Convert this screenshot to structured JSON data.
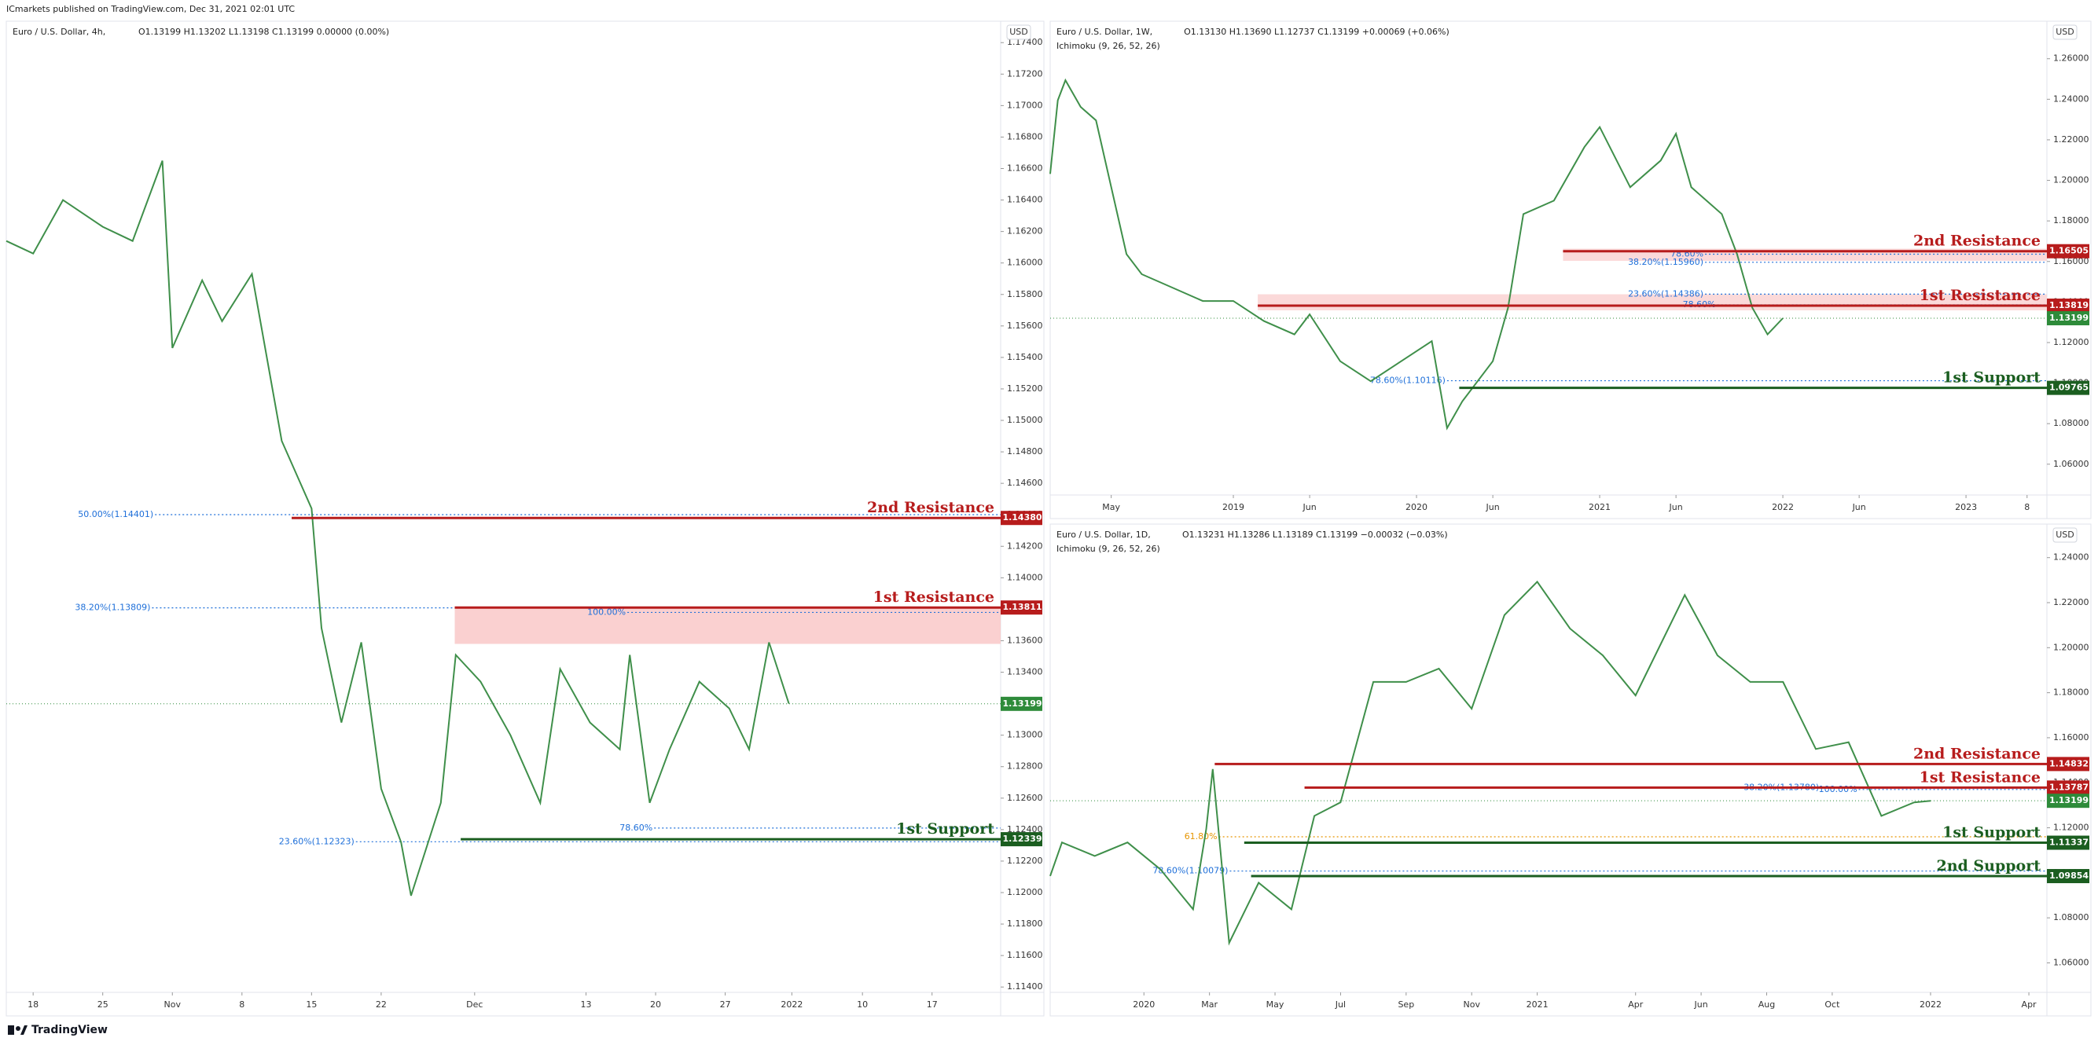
{
  "header": {
    "publisher": "ICmarkets published on TradingView.com, Dec 31, 2021 02:01 UTC",
    "brand": "TradingView"
  },
  "chart_data": [
    {
      "type": "line",
      "title": "Euro / U.S. Dollar, 4h,",
      "ohlc": "O1.13199  H1.13202  L1.13198  C1.13199  0.00000 (0.00%)",
      "ohlc_color": "#2e8b3a",
      "currency": "USD",
      "color": "#3f8f4a",
      "x": [
        -2.7,
        0,
        3,
        7,
        10,
        13,
        14,
        17,
        19,
        22,
        25,
        28,
        29,
        31,
        33,
        35,
        37,
        38,
        41,
        42.5,
        45,
        48,
        51,
        53,
        56,
        59,
        60,
        62,
        64,
        67,
        70,
        72,
        74,
        76
      ],
      "values": [
        1.1614,
        1.1606,
        1.164,
        1.1623,
        1.1614,
        1.1665,
        1.1546,
        1.1589,
        1.1563,
        1.1593,
        1.1487,
        1.1444,
        1.1368,
        1.1308,
        1.1359,
        1.1266,
        1.1232,
        1.1198,
        1.1257,
        1.1351,
        1.1334,
        1.13,
        1.1257,
        1.1342,
        1.1308,
        1.1291,
        1.1351,
        1.1257,
        1.1291,
        1.1334,
        1.1317,
        1.1291,
        1.1359,
        1.132
      ],
      "xlim": [
        -2.7,
        97.3
      ],
      "xticks": [
        {
          "value": 0,
          "label": "18"
        },
        {
          "value": 7,
          "label": "25"
        },
        {
          "value": 14,
          "label": "Nov"
        },
        {
          "value": 21,
          "label": "8"
        },
        {
          "value": 28,
          "label": "15"
        },
        {
          "value": 35,
          "label": "22"
        },
        {
          "value": 44.4,
          "label": "Dec"
        },
        {
          "value": 55.6,
          "label": "13"
        },
        {
          "value": 62.6,
          "label": "20"
        },
        {
          "value": 69.6,
          "label": "27"
        },
        {
          "value": 76.3,
          "label": "2022"
        },
        {
          "value": 83.4,
          "label": "10"
        },
        {
          "value": 90.4,
          "label": "17"
        }
      ],
      "ylim": [
        1.11366,
        1.17536
      ],
      "yticks": [
        {
          "value": 1.114,
          "label": "1.11400"
        },
        {
          "value": 1.116,
          "label": "1.11600"
        },
        {
          "value": 1.118,
          "label": "1.11800"
        },
        {
          "value": 1.12,
          "label": "1.12000"
        },
        {
          "value": 1.122,
          "label": "1.12200"
        },
        {
          "value": 1.124,
          "label": "1.12400"
        },
        {
          "value": 1.126,
          "label": "1.12600"
        },
        {
          "value": 1.128,
          "label": "1.12800"
        },
        {
          "value": 1.13,
          "label": "1.13000"
        },
        {
          "value": 1.132,
          "label": "1.13200"
        },
        {
          "value": 1.134,
          "label": "1.13400"
        },
        {
          "value": 1.136,
          "label": "1.13600"
        },
        {
          "value": 1.138,
          "label": "1.13800"
        },
        {
          "value": 1.14,
          "label": "1.14000"
        },
        {
          "value": 1.142,
          "label": "1.14200"
        },
        {
          "value": 1.144,
          "label": "1.14400"
        },
        {
          "value": 1.146,
          "label": "1.14600"
        },
        {
          "value": 1.148,
          "label": "1.14800"
        },
        {
          "value": 1.15,
          "label": "1.15000"
        },
        {
          "value": 1.152,
          "label": "1.15200"
        },
        {
          "value": 1.154,
          "label": "1.15400"
        },
        {
          "value": 1.156,
          "label": "1.15600"
        },
        {
          "value": 1.158,
          "label": "1.15800"
        },
        {
          "value": 1.16,
          "label": "1.16000"
        },
        {
          "value": 1.162,
          "label": "1.16200"
        },
        {
          "value": 1.164,
          "label": "1.16400"
        },
        {
          "value": 1.166,
          "label": "1.16600"
        },
        {
          "value": 1.168,
          "label": "1.16800"
        },
        {
          "value": 1.17,
          "label": "1.17000"
        },
        {
          "value": 1.172,
          "label": "1.17200"
        },
        {
          "value": 1.174,
          "label": "1.17400"
        }
      ],
      "zones": [
        {
          "from": 42.4,
          "low": 1.1358,
          "high": 1.13811,
          "color": "#f9c8c8"
        }
      ],
      "levels": [
        {
          "name": "2nd Resistance",
          "value": 1.1438,
          "label": "1.14380",
          "from": 26,
          "color": "#b71c1c"
        },
        {
          "name": "1st Resistance",
          "value": 1.13811,
          "label": "1.13811",
          "from": 42.4,
          "color": "#b71c1c"
        },
        {
          "name": "1st Support",
          "value": 1.12339,
          "label": "1.12339",
          "from": 43,
          "color": "#1b5e20"
        }
      ],
      "fibs": [
        {
          "label": "50.00%(1.14401)",
          "value": 1.14401,
          "x": 12.1,
          "color": "#1e6fd9"
        },
        {
          "label": "38.20%(1.13809)",
          "value": 1.13809,
          "x": 11.8,
          "color": "#1e6fd9"
        },
        {
          "label": "23.60%(1.12323)",
          "value": 1.12323,
          "x": 32.3,
          "color": "#1e6fd9"
        },
        {
          "label": "100.00%",
          "value": 1.1378,
          "x": 59.6,
          "color": "#1e6fd9"
        },
        {
          "label": "78.60%",
          "value": 1.1241,
          "x": 62.3,
          "color": "#1e6fd9"
        }
      ],
      "last_price": {
        "value": 1.13199,
        "label": "1.13199",
        "color": "#2e8b3a"
      }
    },
    {
      "type": "line",
      "title": "Euro / U.S. Dollar, 1W,",
      "ohlc": "O1.13130  H1.13690  L1.12737  C1.13199  +0.00069 (+0.06%)",
      "ohlc_color": "#2e8b3a",
      "indicator": "Ichimoku (9, 26, 52, 26)",
      "currency": "USD",
      "color": "#3f8f4a",
      "x": [
        0,
        0.5,
        1,
        2,
        3,
        4,
        5,
        6,
        8,
        10,
        12,
        14,
        16,
        17,
        19,
        21,
        23,
        25,
        26,
        27,
        29,
        30,
        31,
        33,
        35,
        36,
        38,
        40,
        41,
        42,
        44,
        45,
        46,
        47,
        48
      ],
      "values": [
        1.2032,
        1.2395,
        1.2494,
        1.2362,
        1.2296,
        1.1966,
        1.1636,
        1.1537,
        1.1471,
        1.1405,
        1.1405,
        1.1306,
        1.124,
        1.1339,
        1.1108,
        1.1009,
        1.1108,
        1.1207,
        1.0778,
        1.091,
        1.1108,
        1.1372,
        1.1834,
        1.19,
        1.2164,
        1.2263,
        1.1966,
        1.2098,
        1.223,
        1.1966,
        1.1834,
        1.1636,
        1.1372,
        1.124,
        1.132
      ],
      "xlim": [
        0,
        65.3
      ],
      "xticks": [
        {
          "value": 4,
          "label": "May"
        },
        {
          "value": 12,
          "label": "2019"
        },
        {
          "value": 17,
          "label": "Jun"
        },
        {
          "value": 24,
          "label": "2020"
        },
        {
          "value": 29,
          "label": "Jun"
        },
        {
          "value": 36,
          "label": "2021"
        },
        {
          "value": 41,
          "label": "Jun"
        },
        {
          "value": 48,
          "label": "2022"
        },
        {
          "value": 53,
          "label": "Jun"
        },
        {
          "value": 60,
          "label": "2023"
        },
        {
          "value": 64,
          "label": "8"
        }
      ],
      "ylim": [
        1.0448,
        1.2785
      ],
      "yticks": [
        {
          "value": 1.06,
          "label": "1.06000"
        },
        {
          "value": 1.08,
          "label": "1.08000"
        },
        {
          "value": 1.1,
          "label": "1.10000"
        },
        {
          "value": 1.12,
          "label": "1.12000"
        },
        {
          "value": 1.14,
          "label": "1.14000"
        },
        {
          "value": 1.16,
          "label": "1.16000"
        },
        {
          "value": 1.18,
          "label": "1.18000"
        },
        {
          "value": 1.2,
          "label": "1.20000"
        },
        {
          "value": 1.22,
          "label": "1.22000"
        },
        {
          "value": 1.24,
          "label": "1.24000"
        },
        {
          "value": 1.26,
          "label": "1.26000"
        }
      ],
      "zones": [
        {
          "from": 13.6,
          "low": 1.1359,
          "high": 1.1438,
          "color": "#fad2d2"
        },
        {
          "from": 33.6,
          "low": 1.1603,
          "high": 1.1663,
          "color": "#fad2d2"
        }
      ],
      "levels": [
        {
          "name": "2nd Resistance",
          "value": 1.16505,
          "label": "1.16505",
          "from": 33.6,
          "color": "#b71c1c"
        },
        {
          "name": "1st Resistance",
          "value": 1.13819,
          "label": "1.13819",
          "from": 13.6,
          "color": "#b71c1c"
        },
        {
          "name": "1st Support",
          "value": 1.09765,
          "label": "1.09765",
          "from": 26.8,
          "color": "#1b5e20"
        }
      ],
      "fibs": [
        {
          "label": "78.60%",
          "value": 1.1636,
          "x": 42.8,
          "color": "#1e6fd9"
        },
        {
          "label": "38.20%(1.15960)",
          "value": 1.1596,
          "x": 42.8,
          "color": "#1e6fd9"
        },
        {
          "label": "23.60%(1.14386)",
          "value": 1.14386,
          "x": 42.8,
          "color": "#1e6fd9"
        },
        {
          "label": "78.60%",
          "value": 1.1386,
          "x": 43.6,
          "color": "#1e6fd9"
        },
        {
          "label": "78.60%(1.10116)",
          "value": 1.10116,
          "x": 25.9,
          "color": "#1e6fd9"
        }
      ],
      "last_price": {
        "value": 1.13199,
        "label": "1.13199",
        "color": "#2e8b3a"
      }
    },
    {
      "type": "line",
      "title": "Euro / U.S. Dollar, 1D,",
      "ohlc": "O1.13231  H1.13286  L1.13189  C1.13199  −0.00032 (−0.03%)",
      "ohlc_color": "#c62828",
      "indicator": "Ichimoku (9, 26, 52, 26)",
      "currency": "USD",
      "color": "#3f8f4a",
      "x": [
        -2.86,
        -2.5,
        -1.5,
        -0.5,
        0.5,
        1.5,
        1.9,
        2.1,
        2.6,
        3.5,
        4.5,
        5.2,
        6,
        7,
        8,
        9,
        10,
        11,
        12,
        13,
        14,
        15,
        16.5,
        17.5,
        18.5,
        19.5,
        20.5,
        21.5,
        22.5,
        23.5,
        24
      ],
      "values": [
        1.0986,
        1.1135,
        1.1075,
        1.1135,
        1.1016,
        1.0838,
        1.1194,
        1.1461,
        1.0689,
        1.0956,
        1.0838,
        1.1253,
        1.1313,
        1.1848,
        1.1848,
        1.1907,
        1.1729,
        1.2145,
        1.2293,
        1.2085,
        1.1966,
        1.1788,
        1.2234,
        1.1966,
        1.1848,
        1.1848,
        1.155,
        1.158,
        1.1253,
        1.1313,
        1.132
      ],
      "xlim": [
        -2.86,
        27.55
      ],
      "xticks": [
        {
          "value": 0,
          "label": "2020"
        },
        {
          "value": 2,
          "label": "Mar"
        },
        {
          "value": 4,
          "label": "May"
        },
        {
          "value": 6,
          "label": "Jul"
        },
        {
          "value": 8,
          "label": "Sep"
        },
        {
          "value": 10,
          "label": "Nov"
        },
        {
          "value": 12,
          "label": "2021"
        },
        {
          "value": 15,
          "label": "Apr"
        },
        {
          "value": 17,
          "label": "Jun"
        },
        {
          "value": 19,
          "label": "Aug"
        },
        {
          "value": 21,
          "label": "Oct"
        },
        {
          "value": 24,
          "label": "2022"
        },
        {
          "value": 27,
          "label": "Apr"
        }
      ],
      "ylim": [
        1.0469,
        1.2549
      ],
      "yticks": [
        {
          "value": 1.06,
          "label": "1.06000"
        },
        {
          "value": 1.08,
          "label": "1.08000"
        },
        {
          "value": 1.1,
          "label": "1.10000"
        },
        {
          "value": 1.12,
          "label": "1.12000"
        },
        {
          "value": 1.14,
          "label": "1.14000"
        },
        {
          "value": 1.16,
          "label": "1.16000"
        },
        {
          "value": 1.18,
          "label": "1.18000"
        },
        {
          "value": 1.2,
          "label": "1.20000"
        },
        {
          "value": 1.22,
          "label": "1.22000"
        },
        {
          "value": 1.24,
          "label": "1.24000"
        }
      ],
      "zones": [],
      "levels": [
        {
          "name": "2nd Resistance",
          "value": 1.14832,
          "label": "1.14832",
          "from": 2.16,
          "color": "#b71c1c"
        },
        {
          "name": "1st Resistance",
          "value": 1.13787,
          "label": "1.13787",
          "from": 4.9,
          "color": "#b71c1c"
        },
        {
          "name": "1st Support",
          "value": 1.11337,
          "label": "1.11337",
          "from": 3.06,
          "color": "#1b5e20"
        },
        {
          "name": "2nd Support",
          "value": 1.09854,
          "label": "1.09854",
          "from": 3.27,
          "color": "#1b5e20"
        }
      ],
      "fibs": [
        {
          "label": "61.80%",
          "value": 1.116,
          "x": 2.24,
          "color": "#e69500"
        },
        {
          "label": "78.60%(1.10079)",
          "value": 1.10079,
          "x": 2.57,
          "color": "#1e6fd9"
        },
        {
          "label": "38.20%(1.13780)",
          "value": 1.1378,
          "x": 20.6,
          "color": "#1e6fd9"
        },
        {
          "label": "100.00%",
          "value": 1.137,
          "x": 21.76,
          "color": "#1e6fd9"
        }
      ],
      "last_price": {
        "value": 1.13199,
        "label": "1.13199",
        "color": "#2e8b3a"
      }
    }
  ]
}
